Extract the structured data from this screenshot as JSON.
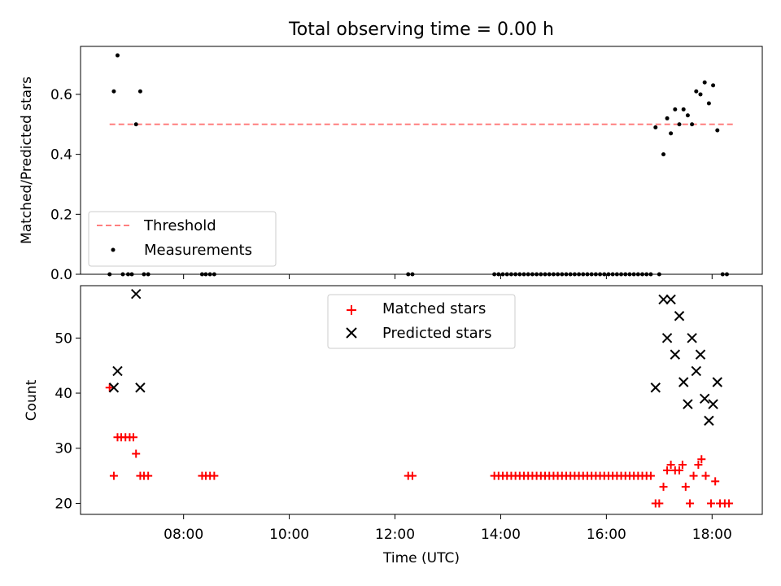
{
  "chart_data": [
    {
      "type": "scatter",
      "title": "Total observing time = 0.00 h",
      "xlabel": "",
      "ylabel": "Matched/Predicted stars",
      "xlim": [
        6.05,
        18.95
      ],
      "ylim": [
        0,
        0.76
      ],
      "yticks": [
        0.0,
        0.2,
        0.4,
        0.6
      ],
      "ytick_labels": [
        "0.0",
        "0.2",
        "0.4",
        "0.6"
      ],
      "xticks": [
        8,
        10,
        12,
        14,
        16,
        18
      ],
      "legend_position": "lower-left",
      "threshold": {
        "name": "Threshold",
        "value": 0.5,
        "x_range": [
          6.6,
          18.4
        ],
        "color": "#ff7f7f",
        "style": "dashed"
      },
      "series": [
        {
          "name": "Measurements",
          "color": "#000000",
          "marker": "dot",
          "points": [
            [
              6.6,
              0.0
            ],
            [
              6.68,
              0.61
            ],
            [
              6.75,
              0.73
            ],
            [
              6.85,
              0.0
            ],
            [
              6.95,
              0.0
            ],
            [
              7.02,
              0.0
            ],
            [
              7.1,
              0.5
            ],
            [
              7.18,
              0.61
            ],
            [
              7.25,
              0.0
            ],
            [
              7.33,
              0.0
            ],
            [
              8.35,
              0.0
            ],
            [
              8.42,
              0.0
            ],
            [
              8.5,
              0.0
            ],
            [
              8.58,
              0.0
            ],
            [
              12.25,
              0.0
            ],
            [
              12.33,
              0.0
            ],
            [
              13.88,
              0.0
            ],
            [
              13.96,
              0.0
            ],
            [
              14.04,
              0.0
            ],
            [
              14.12,
              0.0
            ],
            [
              14.2,
              0.0
            ],
            [
              14.28,
              0.0
            ],
            [
              14.36,
              0.0
            ],
            [
              14.44,
              0.0
            ],
            [
              14.52,
              0.0
            ],
            [
              14.6,
              0.0
            ],
            [
              14.68,
              0.0
            ],
            [
              14.76,
              0.0
            ],
            [
              14.84,
              0.0
            ],
            [
              14.92,
              0.0
            ],
            [
              15.0,
              0.0
            ],
            [
              15.08,
              0.0
            ],
            [
              15.16,
              0.0
            ],
            [
              15.24,
              0.0
            ],
            [
              15.32,
              0.0
            ],
            [
              15.4,
              0.0
            ],
            [
              15.48,
              0.0
            ],
            [
              15.56,
              0.0
            ],
            [
              15.64,
              0.0
            ],
            [
              15.72,
              0.0
            ],
            [
              15.8,
              0.0
            ],
            [
              15.88,
              0.0
            ],
            [
              15.96,
              0.0
            ],
            [
              16.04,
              0.0
            ],
            [
              16.12,
              0.0
            ],
            [
              16.2,
              0.0
            ],
            [
              16.28,
              0.0
            ],
            [
              16.36,
              0.0
            ],
            [
              16.44,
              0.0
            ],
            [
              16.52,
              0.0
            ],
            [
              16.6,
              0.0
            ],
            [
              16.68,
              0.0
            ],
            [
              16.76,
              0.0
            ],
            [
              16.84,
              0.0
            ],
            [
              16.93,
              0.49
            ],
            [
              17.0,
              0.0
            ],
            [
              17.08,
              0.4
            ],
            [
              17.15,
              0.52
            ],
            [
              17.22,
              0.47
            ],
            [
              17.3,
              0.55
            ],
            [
              17.38,
              0.5
            ],
            [
              17.46,
              0.55
            ],
            [
              17.54,
              0.53
            ],
            [
              17.62,
              0.5
            ],
            [
              17.7,
              0.61
            ],
            [
              17.78,
              0.6
            ],
            [
              17.86,
              0.64
            ],
            [
              17.94,
              0.57
            ],
            [
              18.02,
              0.63
            ],
            [
              18.1,
              0.48
            ],
            [
              18.2,
              0.0
            ],
            [
              18.28,
              0.0
            ]
          ]
        }
      ]
    },
    {
      "type": "scatter",
      "title": "",
      "xlabel": "Time (UTC)",
      "ylabel": "Count",
      "xlim": [
        6.05,
        18.95
      ],
      "ylim": [
        18,
        59.5
      ],
      "yticks": [
        20,
        30,
        40,
        50
      ],
      "ytick_labels": [
        "20",
        "30",
        "40",
        "50"
      ],
      "xticks": [
        8,
        10,
        12,
        14,
        16,
        18
      ],
      "xtick_labels": [
        "08:00",
        "10:00",
        "12:00",
        "14:00",
        "16:00",
        "18:00"
      ],
      "legend_position": "upper-center",
      "series": [
        {
          "name": "Matched stars",
          "color": "#ff0000",
          "marker": "plus",
          "points": [
            [
              6.6,
              41
            ],
            [
              6.68,
              25
            ],
            [
              6.75,
              32
            ],
            [
              6.82,
              32
            ],
            [
              6.9,
              32
            ],
            [
              6.98,
              32
            ],
            [
              7.05,
              32
            ],
            [
              7.1,
              29
            ],
            [
              7.18,
              25
            ],
            [
              7.25,
              25
            ],
            [
              7.33,
              25
            ],
            [
              8.35,
              25
            ],
            [
              8.42,
              25
            ],
            [
              8.5,
              25
            ],
            [
              8.58,
              25
            ],
            [
              12.25,
              25
            ],
            [
              12.33,
              25
            ],
            [
              13.88,
              25
            ],
            [
              13.96,
              25
            ],
            [
              14.04,
              25
            ],
            [
              14.12,
              25
            ],
            [
              14.2,
              25
            ],
            [
              14.28,
              25
            ],
            [
              14.36,
              25
            ],
            [
              14.44,
              25
            ],
            [
              14.52,
              25
            ],
            [
              14.6,
              25
            ],
            [
              14.68,
              25
            ],
            [
              14.76,
              25
            ],
            [
              14.84,
              25
            ],
            [
              14.92,
              25
            ],
            [
              15.0,
              25
            ],
            [
              15.08,
              25
            ],
            [
              15.16,
              25
            ],
            [
              15.24,
              25
            ],
            [
              15.32,
              25
            ],
            [
              15.4,
              25
            ],
            [
              15.48,
              25
            ],
            [
              15.56,
              25
            ],
            [
              15.64,
              25
            ],
            [
              15.72,
              25
            ],
            [
              15.8,
              25
            ],
            [
              15.88,
              25
            ],
            [
              15.96,
              25
            ],
            [
              16.04,
              25
            ],
            [
              16.12,
              25
            ],
            [
              16.2,
              25
            ],
            [
              16.28,
              25
            ],
            [
              16.36,
              25
            ],
            [
              16.44,
              25
            ],
            [
              16.52,
              25
            ],
            [
              16.6,
              25
            ],
            [
              16.68,
              25
            ],
            [
              16.76,
              25
            ],
            [
              16.84,
              25
            ],
            [
              16.93,
              20
            ],
            [
              17.0,
              20
            ],
            [
              17.08,
              23
            ],
            [
              17.15,
              26
            ],
            [
              17.22,
              27
            ],
            [
              17.3,
              26
            ],
            [
              17.38,
              26
            ],
            [
              17.44,
              27
            ],
            [
              17.5,
              23
            ],
            [
              17.58,
              20
            ],
            [
              17.65,
              25
            ],
            [
              17.74,
              27
            ],
            [
              17.8,
              28
            ],
            [
              17.88,
              25
            ],
            [
              17.98,
              20
            ],
            [
              18.06,
              24
            ],
            [
              18.15,
              20
            ],
            [
              18.24,
              20
            ],
            [
              18.32,
              20
            ]
          ]
        },
        {
          "name": "Predicted stars",
          "color": "#000000",
          "marker": "x",
          "points": [
            [
              6.68,
              41
            ],
            [
              6.75,
              44
            ],
            [
              7.1,
              58
            ],
            [
              7.18,
              41
            ],
            [
              16.93,
              41
            ],
            [
              17.08,
              57
            ],
            [
              17.15,
              50
            ],
            [
              17.22,
              57
            ],
            [
              17.3,
              47
            ],
            [
              17.38,
              54
            ],
            [
              17.46,
              42
            ],
            [
              17.54,
              38
            ],
            [
              17.62,
              50
            ],
            [
              17.7,
              44
            ],
            [
              17.78,
              47
            ],
            [
              17.86,
              39
            ],
            [
              17.94,
              35
            ],
            [
              18.02,
              38
            ],
            [
              18.1,
              42
            ]
          ]
        }
      ]
    }
  ]
}
